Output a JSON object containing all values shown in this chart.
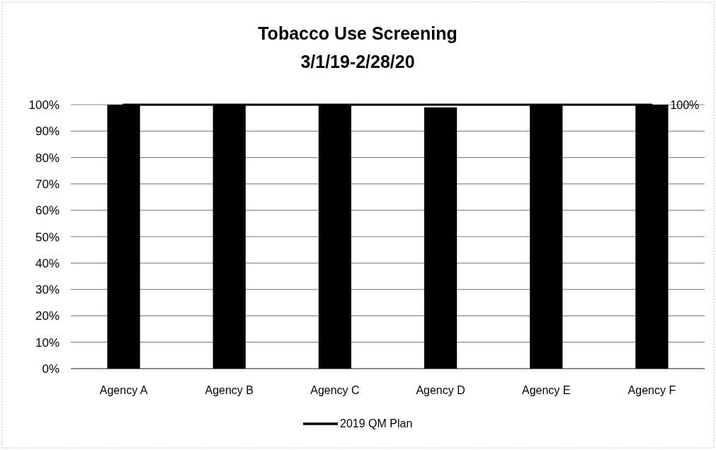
{
  "chart_data": {
    "type": "bar",
    "title": "Tobacco Use Screening",
    "subtitle": "3/1/19-2/28/20",
    "categories": [
      "Agency A",
      "Agency B",
      "Agency C",
      "Agency D",
      "Agency E",
      "Agency F"
    ],
    "series": [
      {
        "color": "#000000",
        "values": [
          100,
          100,
          100,
          99,
          100,
          100
        ]
      },
      {
        "type": "line",
        "name": "2019 QM Plan",
        "color": "#000000",
        "values": [
          100,
          100,
          100,
          100,
          100,
          100
        ],
        "value_labels": [
          null,
          null,
          null,
          null,
          null,
          "100%"
        ]
      }
    ],
    "ylim": [
      0,
      100
    ],
    "yticks": [
      {
        "value": 0,
        "label": "0%"
      },
      {
        "value": 10,
        "label": "10%"
      },
      {
        "value": 20,
        "label": "20%"
      },
      {
        "value": 30,
        "label": "30%"
      },
      {
        "value": 40,
        "label": "40%"
      },
      {
        "value": 50,
        "label": "50%"
      },
      {
        "value": 60,
        "label": "60%"
      },
      {
        "value": 70,
        "label": "70%"
      },
      {
        "value": 80,
        "label": "80%"
      },
      {
        "value": 90,
        "label": "90%"
      },
      {
        "value": 100,
        "label": "100%"
      }
    ],
    "grid": "y",
    "legend": "bottom"
  }
}
